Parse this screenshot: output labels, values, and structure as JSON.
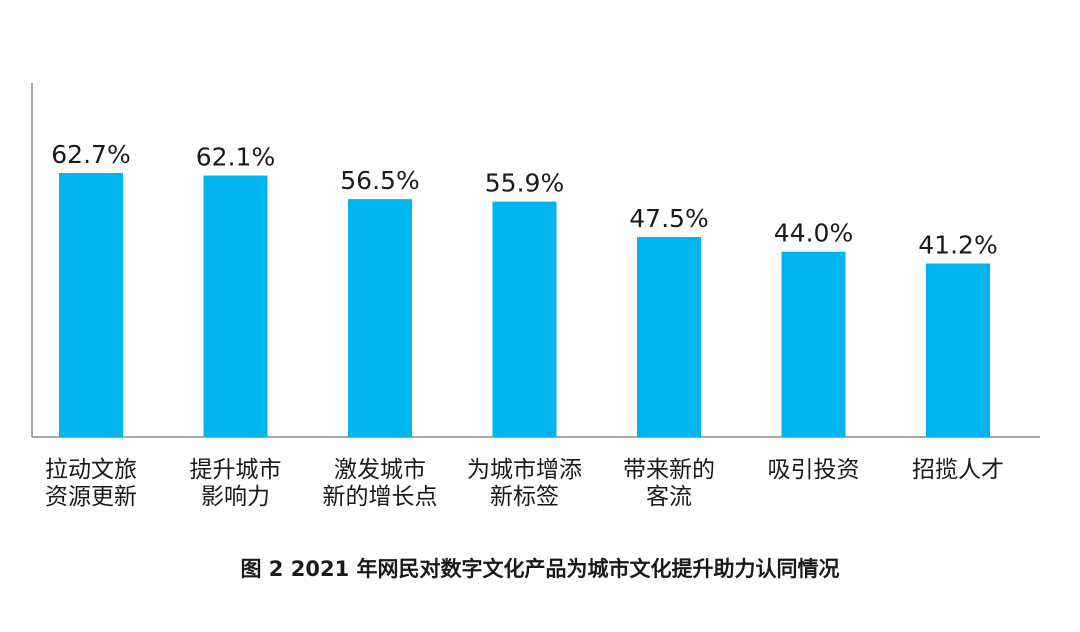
{
  "chart_data": {
    "type": "bar",
    "categories": [
      [
        "拉动文旅",
        "资源更新"
      ],
      [
        "提升城市",
        "影响力"
      ],
      [
        "激发城市",
        "新的增长点"
      ],
      [
        "为城市增添",
        "新标签"
      ],
      [
        "带来新的",
        "客流"
      ],
      [
        "吸引投资"
      ],
      [
        "招揽人才"
      ]
    ],
    "values": [
      62.7,
      62.1,
      56.5,
      55.9,
      47.5,
      44.0,
      41.2
    ],
    "value_labels": [
      "62.7%",
      "62.1%",
      "56.5%",
      "55.9%",
      "47.5%",
      "44.0%",
      "41.2%"
    ],
    "ylim": [
      0,
      62.7
    ],
    "grid": false,
    "bar_color": "#00b4ef",
    "axis_color": "#8c8c8c",
    "caption": "图 2  2021 年网民对数字文化产品为城市文化提升助力认同情况"
  }
}
